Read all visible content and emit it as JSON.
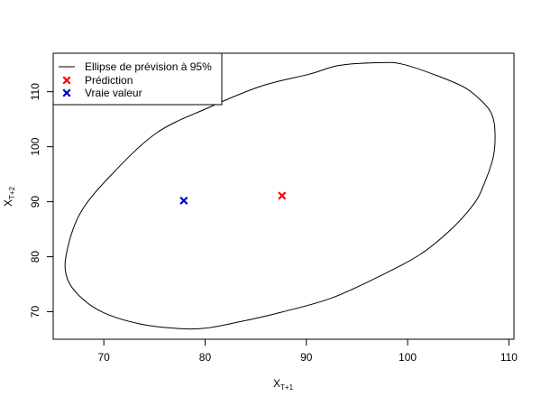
{
  "chart_data": {
    "type": "scatter",
    "title": "",
    "xlabel": {
      "main": "X",
      "sub": "T+1"
    },
    "ylabel": {
      "main": "X",
      "sub": "T+2"
    },
    "xlim": [
      65,
      110.5
    ],
    "ylim": [
      65,
      117
    ],
    "xticks": [
      70,
      80,
      90,
      100,
      110
    ],
    "yticks": [
      70,
      80,
      90,
      100,
      110
    ],
    "grid": false,
    "legend_position": "top-left",
    "ellipse": {
      "name": "Ellipse de prévision à 95%",
      "color": "#000000",
      "center": [
        87.5,
        91.1
      ],
      "points": [
        [
          108.6,
          103.5
        ],
        [
          108.2,
          106.3
        ],
        [
          107.2,
          108.5
        ],
        [
          105.6,
          110.8
        ],
        [
          102.8,
          113.0
        ],
        [
          99.5,
          115.0
        ],
        [
          97.5,
          115.3
        ],
        [
          93.3,
          114.8
        ],
        [
          90.3,
          113.2
        ],
        [
          85.5,
          111.0
        ],
        [
          80.2,
          107.0
        ],
        [
          75.2,
          102.5
        ],
        [
          70.8,
          95.0
        ],
        [
          67.7,
          88.0
        ],
        [
          66.3,
          80.5
        ],
        [
          66.4,
          76.0
        ],
        [
          67.8,
          72.5
        ],
        [
          70.0,
          69.8
        ],
        [
          73.5,
          67.8
        ],
        [
          77.0,
          67.0
        ],
        [
          80.0,
          67.0
        ],
        [
          84.0,
          68.4
        ],
        [
          87.5,
          69.9
        ],
        [
          92.5,
          72.5
        ],
        [
          97.5,
          76.7
        ],
        [
          101.3,
          80.5
        ],
        [
          104.3,
          85.0
        ],
        [
          106.5,
          89.5
        ],
        [
          107.5,
          93.0
        ],
        [
          108.5,
          98.5
        ]
      ]
    },
    "series": [
      {
        "name": "Prédiction",
        "color": "#ff0000",
        "marker": "x",
        "x": [
          87.6
        ],
        "y": [
          91.1
        ]
      },
      {
        "name": "Vraie valeur",
        "color": "#0000cc",
        "marker": "x",
        "x": [
          77.9
        ],
        "y": [
          90.2
        ]
      }
    ]
  }
}
